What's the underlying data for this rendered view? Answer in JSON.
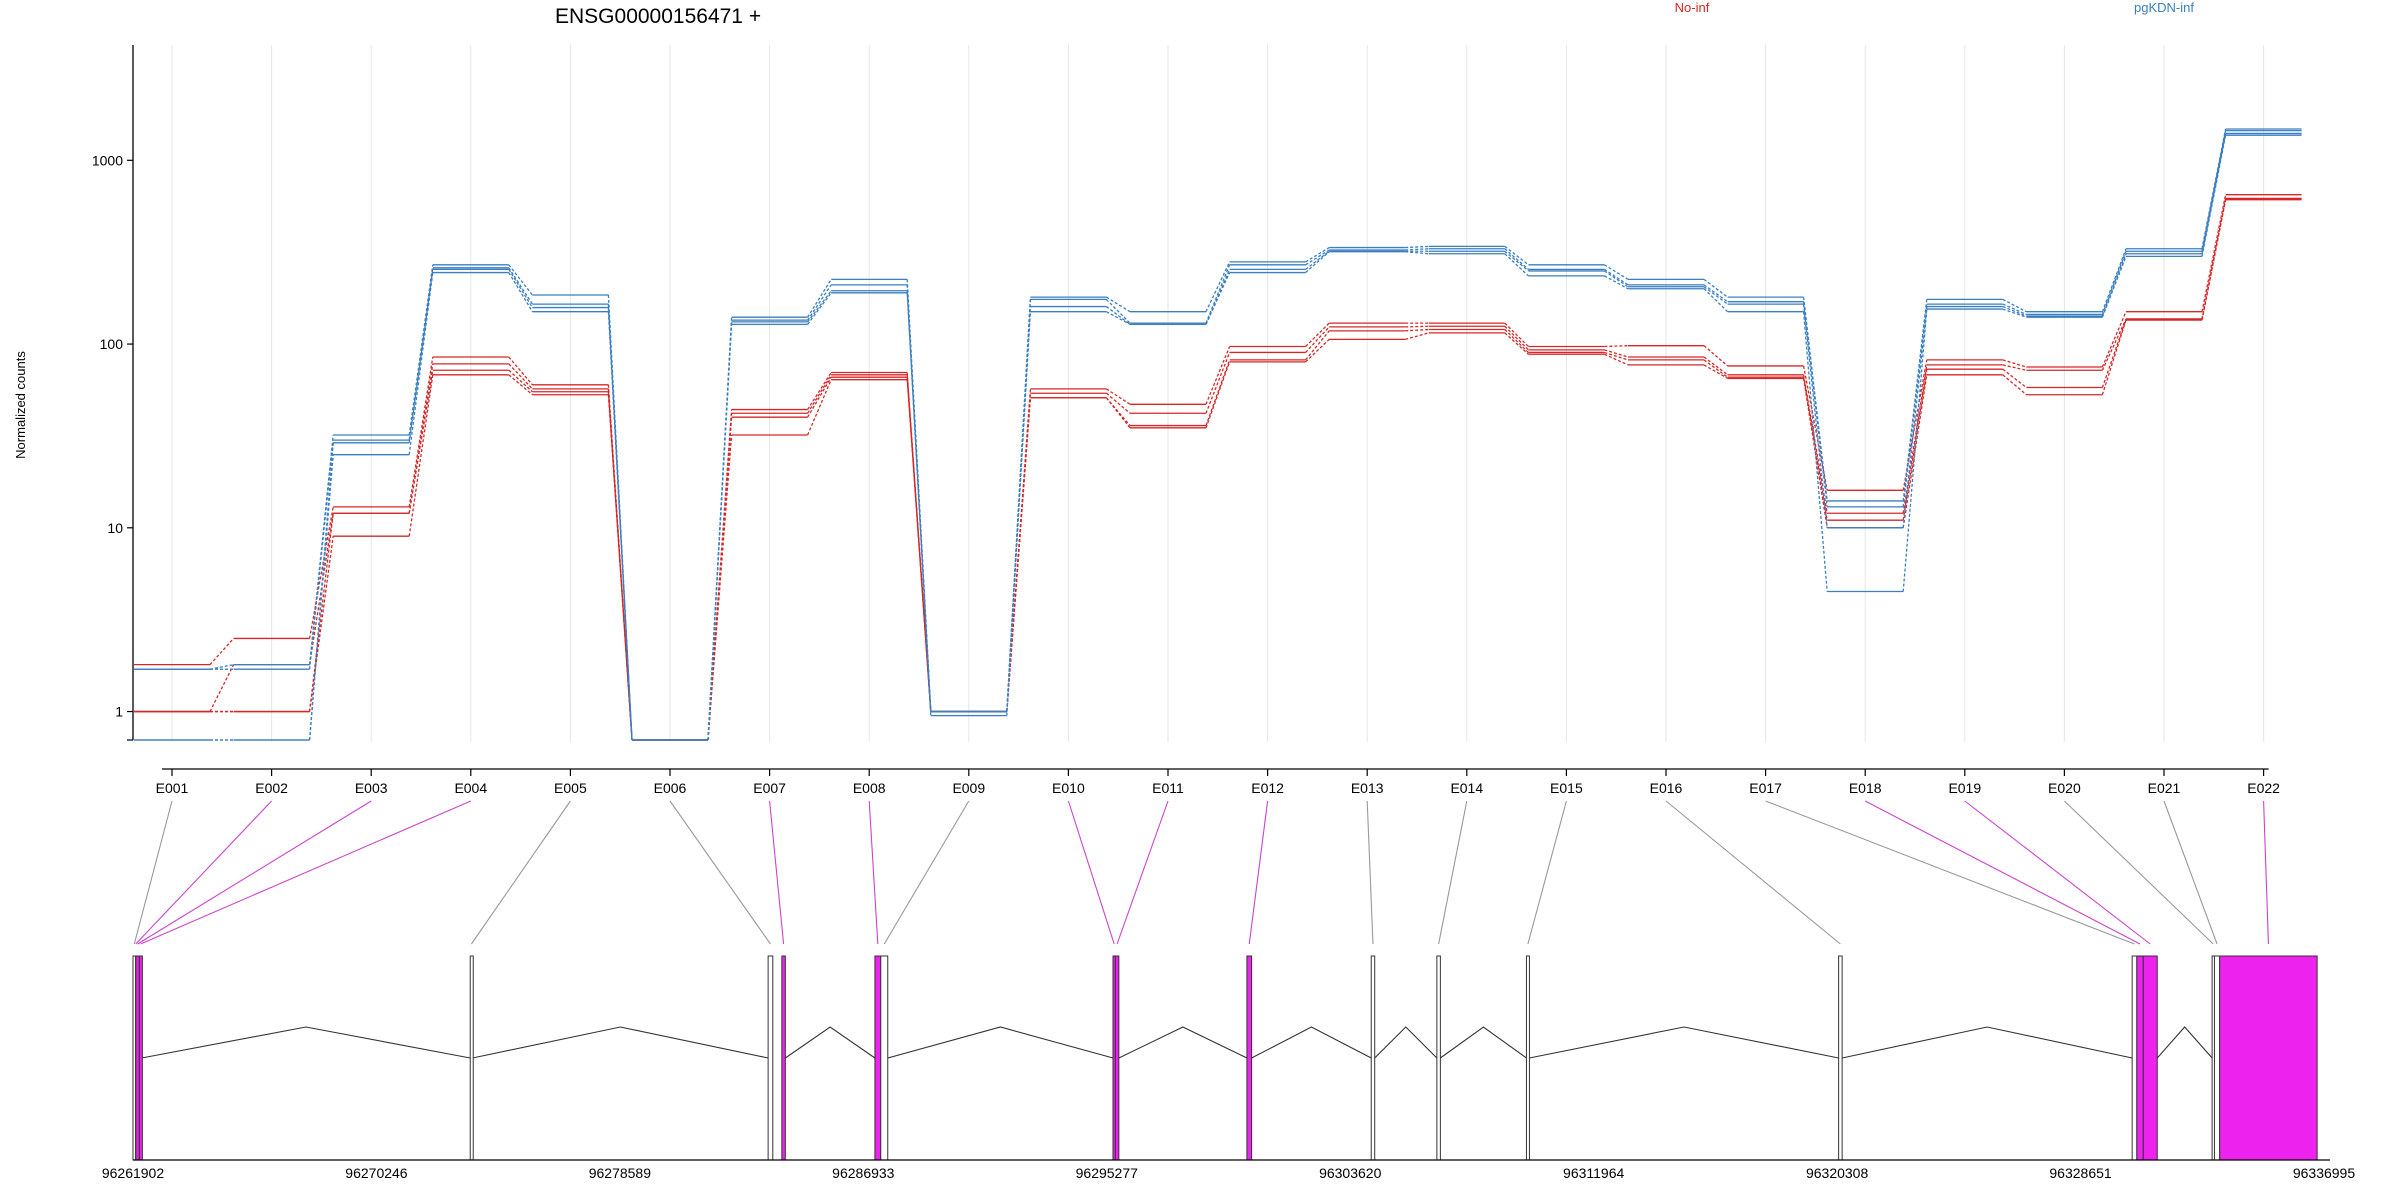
{
  "title": "ENSG00000156471 +",
  "ylabel": "Normalized counts",
  "colors": {
    "no_inf": "#d62728",
    "pgkdn_inf": "#3a7fc0",
    "exon_fill": "#ee22ee",
    "exon_outline": "#333333",
    "connector_gray": "#999999",
    "connector_magenta": "#cc44cc",
    "axis": "#000000",
    "grid": "#e6e6e6"
  },
  "chart_data": {
    "type": "line",
    "title": "ENSG00000156471 +",
    "xlabel": "",
    "ylabel": "Normalized counts",
    "y_scale": "log",
    "ylim": [
      0.7,
      2000
    ],
    "yticks": [
      1,
      10,
      100,
      1000
    ],
    "ytick_labels": [
      "1",
      "10",
      "100",
      "1000"
    ],
    "grid": "vertical at exon centers",
    "legend_position": "top",
    "categories": [
      "E001",
      "E002",
      "E003",
      "E004",
      "E005",
      "E006",
      "E007",
      "E008",
      "E009",
      "E010",
      "E011",
      "E012",
      "E013",
      "E014",
      "E015",
      "E016",
      "E017",
      "E018",
      "E019",
      "E020",
      "E021",
      "E022"
    ],
    "groups": [
      {
        "name": "No-inf",
        "color": "#d62728"
      },
      {
        "name": "pgKDN-inf",
        "color": "#3a7fc0"
      }
    ],
    "series": [
      {
        "group": "No-inf",
        "values": [
          1.8,
          2.5,
          13,
          85,
          60,
          0.7,
          44,
          70,
          1.0,
          57,
          47,
          97,
          130,
          130,
          97,
          98,
          76,
          16,
          82,
          75,
          150,
          650
        ]
      },
      {
        "group": "No-inf",
        "values": [
          1.0,
          1.8,
          12,
          78,
          57,
          0.7,
          42,
          68,
          1.0,
          54,
          42,
          90,
          124,
          125,
          93,
          85,
          68,
          12,
          77,
          72,
          137,
          620
        ]
      },
      {
        "group": "No-inf",
        "values": [
          1.0,
          1.0,
          12,
          72,
          55,
          0.7,
          40,
          66,
          1.0,
          51,
          36,
          82,
          118,
          120,
          90,
          82,
          66,
          11,
          73,
          58,
          136,
          615
        ]
      },
      {
        "group": "No-inf",
        "values": [
          1.0,
          1.0,
          9,
          68,
          53,
          0.7,
          32,
          64,
          1.0,
          51,
          35,
          80,
          106,
          115,
          88,
          77,
          65,
          10,
          68,
          53,
          135,
          610
        ]
      },
      {
        "group": "pgKDN-inf",
        "values": [
          1.7,
          1.8,
          32,
          270,
          185,
          0.7,
          140,
          225,
          1.0,
          180,
          150,
          280,
          335,
          340,
          270,
          225,
          180,
          14,
          175,
          150,
          330,
          1480
        ]
      },
      {
        "group": "pgKDN-inf",
        "values": [
          1.7,
          1.7,
          30,
          260,
          165,
          0.7,
          135,
          210,
          1.0,
          175,
          130,
          270,
          325,
          330,
          255,
          210,
          170,
          13,
          165,
          145,
          320,
          1450
        ]
      },
      {
        "group": "pgKDN-inf",
        "values": [
          0.7,
          0.7,
          29,
          255,
          158,
          0.7,
          132,
          195,
          1.0,
          160,
          128,
          255,
          320,
          320,
          250,
          205,
          165,
          10,
          160,
          142,
          310,
          1400
        ]
      },
      {
        "group": "pgKDN-inf",
        "values": [
          0.7,
          0.7,
          25,
          245,
          150,
          0.7,
          128,
          190,
          0.95,
          150,
          128,
          245,
          318,
          310,
          235,
          200,
          150,
          4.5,
          155,
          140,
          300,
          1370
        ]
      }
    ],
    "gene_model": {
      "coordinate_labels": [
        "96261902",
        "96270246",
        "96278589",
        "96286933",
        "96295277",
        "96303620",
        "96311964",
        "96320308",
        "96328651",
        "96336995"
      ],
      "exons": [
        {
          "id": "E001",
          "start": 96261902,
          "end": 96261990,
          "highlighted": false
        },
        {
          "id": "E002",
          "start": 96261990,
          "end": 96262000,
          "highlighted": true
        },
        {
          "id": "E003",
          "start": 96262000,
          "end": 96262120,
          "highlighted": true
        },
        {
          "id": "E004",
          "start": 96262120,
          "end": 96262200,
          "highlighted": true
        },
        {
          "id": "E005",
          "start": 96273460,
          "end": 96273540,
          "highlighted": false
        },
        {
          "id": "E006",
          "start": 96283670,
          "end": 96283830,
          "highlighted": false
        },
        {
          "id": "E007",
          "start": 96284140,
          "end": 96284260,
          "highlighted": true
        },
        {
          "id": "E008",
          "start": 96287330,
          "end": 96287530,
          "highlighted": true
        },
        {
          "id": "E009",
          "start": 96287530,
          "end": 96287770,
          "highlighted": false
        },
        {
          "id": "E010",
          "start": 96295490,
          "end": 96295570,
          "highlighted": true
        },
        {
          "id": "E011",
          "start": 96295570,
          "end": 96295690,
          "highlighted": true
        },
        {
          "id": "E012",
          "start": 96300080,
          "end": 96300240,
          "highlighted": true
        },
        {
          "id": "E013",
          "start": 96304340,
          "end": 96304460,
          "highlighted": false
        },
        {
          "id": "E014",
          "start": 96306590,
          "end": 96306710,
          "highlighted": false
        },
        {
          "id": "E015",
          "start": 96309660,
          "end": 96309760,
          "highlighted": false
        },
        {
          "id": "E016",
          "start": 96320360,
          "end": 96320480,
          "highlighted": false
        },
        {
          "id": "E017",
          "start": 96330420,
          "end": 96330580,
          "highlighted": false
        },
        {
          "id": "E018",
          "start": 96330580,
          "end": 96330800,
          "highlighted": true
        },
        {
          "id": "E019",
          "start": 96330800,
          "end": 96331280,
          "highlighted": true
        },
        {
          "id": "E020",
          "start": 96333160,
          "end": 96333240,
          "highlighted": false
        },
        {
          "id": "E021",
          "start": 96333240,
          "end": 96333420,
          "highlighted": false
        },
        {
          "id": "E022",
          "start": 96333420,
          "end": 96336760,
          "highlighted": true
        }
      ]
    }
  }
}
